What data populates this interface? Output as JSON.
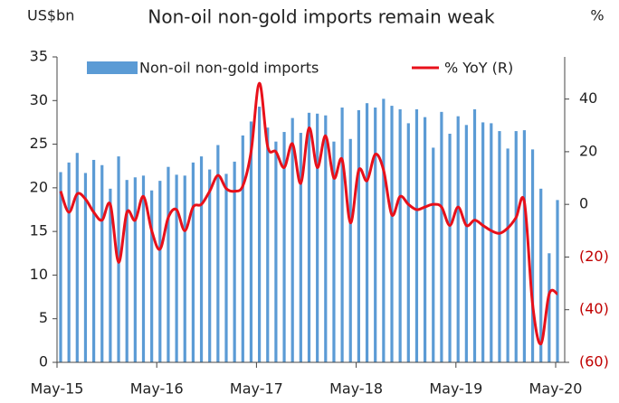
{
  "chart_data": {
    "type": "bar-line",
    "title": "Non-oil non-gold imports remain weak",
    "y_label": "US$bn",
    "y2_label": "%",
    "categories": [
      "May-15",
      null,
      null,
      null,
      null,
      null,
      null,
      null,
      null,
      null,
      null,
      null,
      "May-16",
      null,
      null,
      null,
      null,
      null,
      null,
      null,
      null,
      null,
      null,
      null,
      "May-17",
      null,
      null,
      null,
      null,
      null,
      null,
      null,
      null,
      null,
      null,
      null,
      "May-18",
      null,
      null,
      null,
      null,
      null,
      null,
      null,
      null,
      null,
      null,
      null,
      "May-19",
      null,
      null,
      null,
      null,
      null,
      null,
      null,
      null,
      null,
      null,
      null,
      "May-20"
    ],
    "series": [
      {
        "name": "Non-oil non-gold imports",
        "type": "bar",
        "color": "#5b9bd5",
        "values": [
          21.8,
          22.9,
          24.0,
          21.7,
          23.2,
          22.6,
          19.9,
          23.6,
          20.9,
          21.2,
          21.4,
          19.7,
          20.8,
          22.4,
          21.5,
          21.4,
          22.9,
          23.6,
          22.1,
          24.9,
          21.6,
          23.0,
          26.0,
          27.6,
          29.3,
          26.9,
          25.3,
          26.4,
          28.0,
          26.3,
          28.6,
          28.5,
          28.3,
          25.3,
          29.2,
          25.6,
          28.9,
          29.7,
          29.2,
          30.2,
          29.4,
          29.0,
          27.4,
          29.0,
          28.1,
          24.6,
          28.7,
          26.2,
          28.2,
          27.2,
          29.0,
          27.5,
          27.4,
          26.5,
          24.5,
          26.5,
          26.6,
          24.4,
          19.9,
          12.5,
          18.6
        ]
      },
      {
        "name": "% YoY (R)",
        "type": "line",
        "axis": "y2",
        "color": "#e8101a",
        "values": [
          5,
          -3,
          4,
          2,
          -3,
          -6,
          0,
          -22,
          -3,
          -6,
          3,
          -10,
          -17,
          -5,
          -2,
          -10,
          -1,
          0,
          5,
          11,
          6,
          5,
          7,
          20,
          46,
          22,
          20,
          14,
          23,
          8,
          29,
          14,
          26,
          10,
          17,
          -7,
          13,
          9,
          19,
          13,
          -4,
          3,
          0,
          -2,
          -1,
          0,
          -1,
          -8,
          -1,
          -8,
          -6,
          -8,
          -10,
          -11,
          -9,
          -5,
          1,
          -38,
          -53,
          -34,
          -34
        ]
      }
    ],
    "ylim": [
      0,
      35
    ],
    "yticks": [
      0,
      5,
      10,
      15,
      20,
      25,
      30,
      35
    ],
    "y2lim": [
      -60,
      56
    ],
    "y2ticks": [
      40,
      20,
      0,
      {
        "value": -20,
        "label": "(20)"
      },
      {
        "value": -40,
        "label": "(40)"
      },
      {
        "value": -60,
        "label": "(60)"
      }
    ],
    "legend": "top"
  }
}
